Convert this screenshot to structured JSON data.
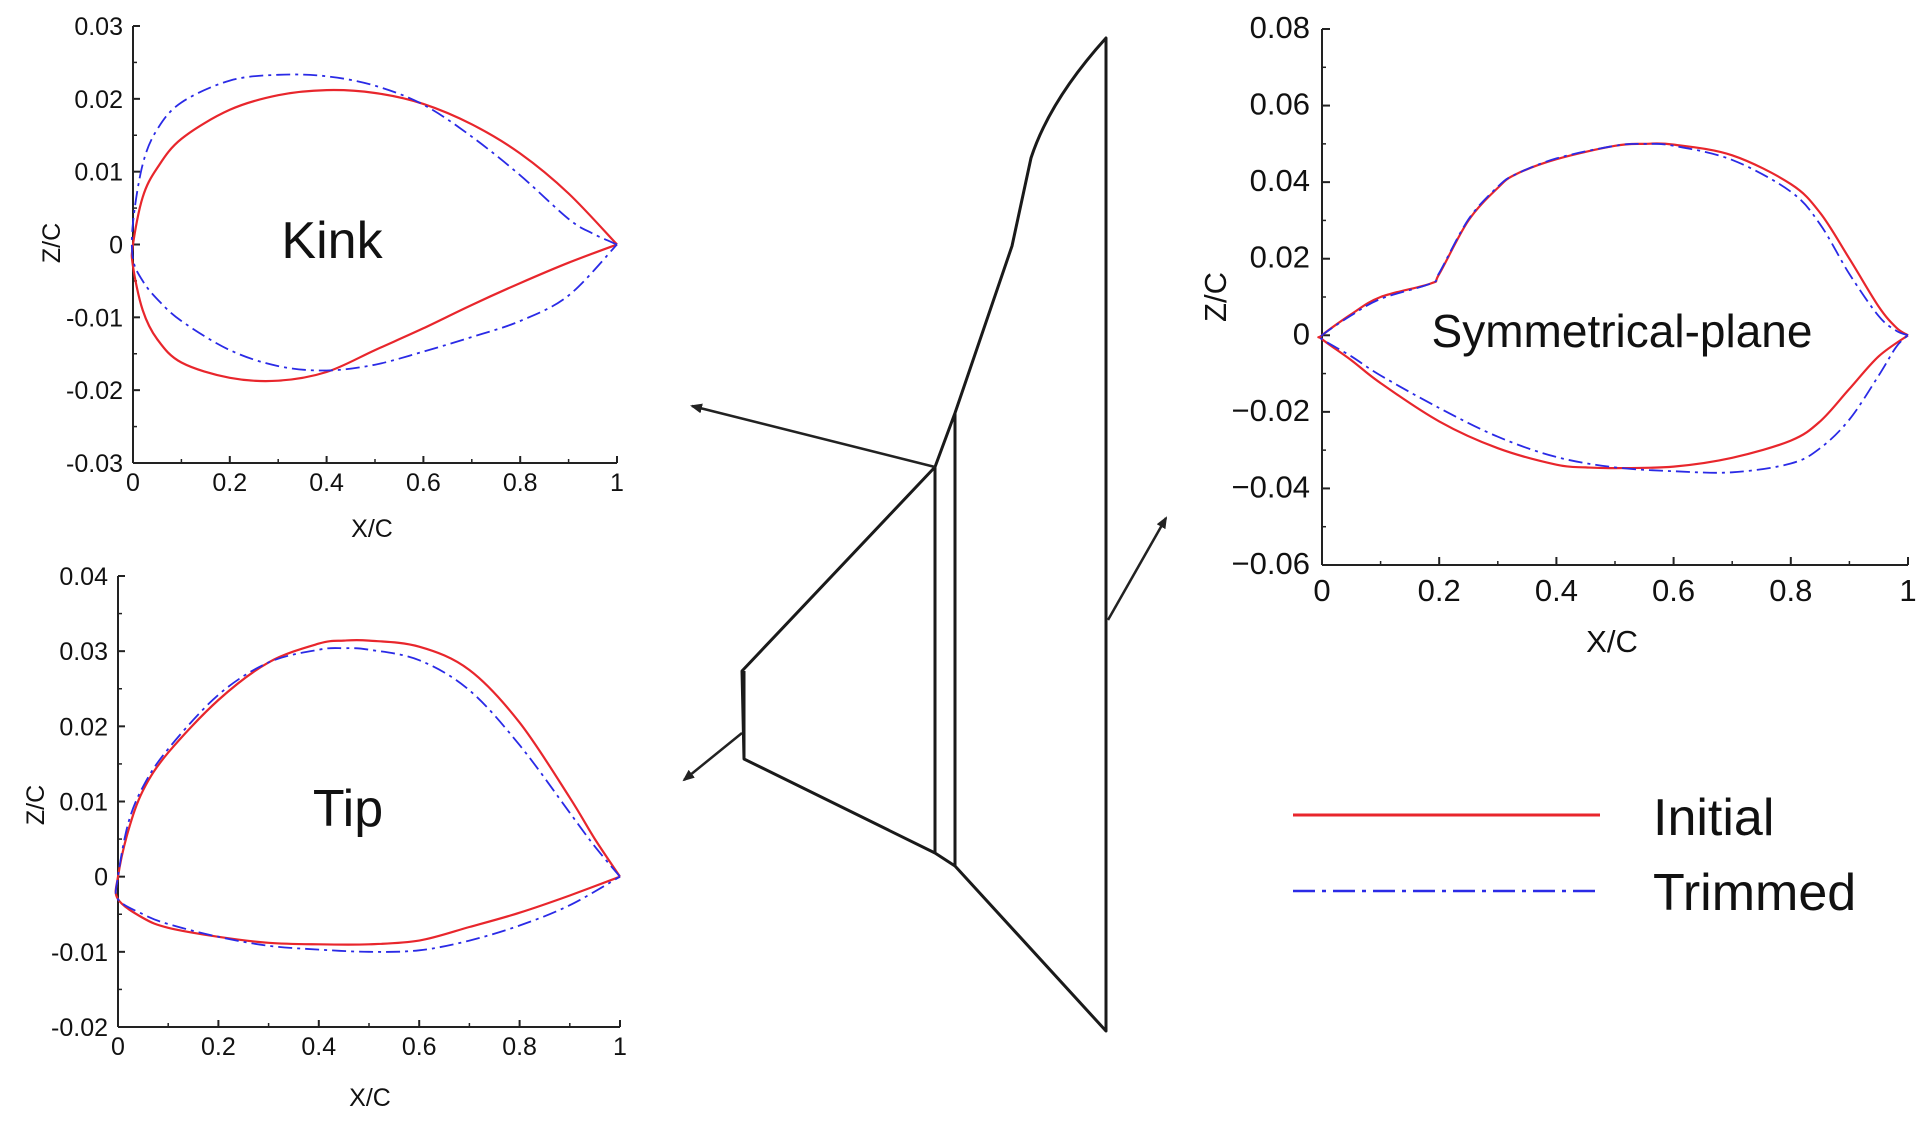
{
  "colors": {
    "initial": "#e8262c",
    "trimmed": "#2a2ae6",
    "axis": "#222222",
    "wing": "#1a1a1a"
  },
  "legend": {
    "initial_label": "Initial",
    "trimmed_label": "Trimmed"
  },
  "chart_data": [
    {
      "type": "line",
      "id": "kink",
      "annotation": "Kink",
      "xlabel": "X/C",
      "ylabel": "Z/C",
      "xlim": [
        0,
        1
      ],
      "ylim": [
        -0.03,
        0.03
      ],
      "xticks": [
        "0",
        "0.2",
        "0.4",
        "0.6",
        "0.8",
        "1"
      ],
      "yticks": [
        "0.03",
        "0.02",
        "0.01",
        "0",
        "-0.01",
        "-0.02",
        "-0.03"
      ],
      "yticks_values": [
        0.03,
        0.02,
        0.01,
        0,
        -0.01,
        -0.02,
        -0.03
      ],
      "series": [
        {
          "name": "Initial",
          "x": [
            1.0,
            0.9,
            0.8,
            0.7,
            0.6,
            0.5,
            0.4,
            0.3,
            0.2,
            0.1,
            0.05,
            0.02,
            0.0,
            0.0,
            0.02,
            0.05,
            0.1,
            0.2,
            0.3,
            0.4,
            0.5,
            0.6,
            0.7,
            0.8,
            0.9,
            1.0
          ],
          "y": [
            0.0,
            0.007,
            0.0125,
            0.0165,
            0.0193,
            0.0208,
            0.0212,
            0.0205,
            0.0185,
            0.0145,
            0.0105,
            0.0065,
            0.0,
            -0.003,
            -0.009,
            -0.013,
            -0.0162,
            -0.0183,
            -0.0187,
            -0.0175,
            -0.0145,
            -0.0115,
            -0.0083,
            -0.0053,
            -0.0025,
            0.0
          ]
        },
        {
          "name": "Trimmed",
          "x": [
            1.0,
            0.95,
            0.9,
            0.8,
            0.7,
            0.6,
            0.5,
            0.4,
            0.3,
            0.2,
            0.1,
            0.05,
            0.02,
            0.0,
            0.0,
            0.02,
            0.05,
            0.1,
            0.2,
            0.3,
            0.4,
            0.5,
            0.6,
            0.7,
            0.8,
            0.9,
            1.0
          ],
          "y": [
            0.0,
            0.0015,
            0.0035,
            0.0095,
            0.0148,
            0.0192,
            0.0218,
            0.0231,
            0.0233,
            0.0225,
            0.0195,
            0.0158,
            0.011,
            0.003,
            -0.002,
            -0.005,
            -0.0075,
            -0.0105,
            -0.0145,
            -0.0167,
            -0.0173,
            -0.0165,
            -0.0147,
            -0.0127,
            -0.0105,
            -0.007,
            0.0
          ]
        }
      ]
    },
    {
      "type": "line",
      "id": "tip",
      "annotation": "Tip",
      "xlabel": "X/C",
      "ylabel": "Z/C",
      "xlim": [
        0,
        1
      ],
      "ylim": [
        -0.02,
        0.04
      ],
      "xticks": [
        "0",
        "0.2",
        "0.4",
        "0.6",
        "0.8",
        "1"
      ],
      "yticks": [
        "0.04",
        "0.03",
        "0.02",
        "0.01",
        "0",
        "-0.01",
        "-0.02"
      ],
      "yticks_values": [
        0.04,
        0.03,
        0.02,
        0.01,
        0,
        -0.01,
        -0.02
      ],
      "series": [
        {
          "name": "Initial",
          "x": [
            1.0,
            0.95,
            0.9,
            0.8,
            0.7,
            0.6,
            0.5,
            0.45,
            0.4,
            0.3,
            0.2,
            0.1,
            0.05,
            0.02,
            0.0,
            0.0,
            0.05,
            0.1,
            0.2,
            0.3,
            0.4,
            0.5,
            0.6,
            0.7,
            0.8,
            0.9,
            1.0
          ],
          "y": [
            0.0,
            0.005,
            0.0105,
            0.0205,
            0.0275,
            0.0306,
            0.0314,
            0.0314,
            0.031,
            0.0285,
            0.0235,
            0.0165,
            0.0115,
            0.006,
            0.0,
            -0.003,
            -0.0055,
            -0.0068,
            -0.008,
            -0.0088,
            -0.009,
            -0.009,
            -0.0085,
            -0.0067,
            -0.0048,
            -0.0025,
            0.0
          ]
        },
        {
          "name": "Trimmed",
          "x": [
            1.0,
            0.95,
            0.9,
            0.8,
            0.7,
            0.6,
            0.5,
            0.45,
            0.4,
            0.3,
            0.2,
            0.1,
            0.05,
            0.02,
            0.0,
            0.0,
            0.05,
            0.1,
            0.2,
            0.3,
            0.4,
            0.5,
            0.6,
            0.7,
            0.8,
            0.9,
            1.0
          ],
          "y": [
            0.0,
            0.004,
            0.0085,
            0.0175,
            0.0248,
            0.0288,
            0.0302,
            0.0304,
            0.0302,
            0.0285,
            0.0242,
            0.017,
            0.012,
            0.007,
            0.0,
            -0.003,
            -0.005,
            -0.0063,
            -0.008,
            -0.0092,
            -0.0097,
            -0.01,
            -0.0098,
            -0.0085,
            -0.0065,
            -0.0038,
            0.0
          ]
        }
      ]
    },
    {
      "type": "line",
      "id": "symmetrical-plane",
      "annotation": "Symmetrical-plane",
      "xlabel": "X/C",
      "ylabel": "Z/C",
      "xlim": [
        0,
        1
      ],
      "ylim": [
        -0.06,
        0.08
      ],
      "xticks": [
        "0",
        "0.2",
        "0.4",
        "0.6",
        "0.8",
        "1"
      ],
      "yticks": [
        "0.08",
        "0.06",
        "0.04",
        "0.02",
        "0",
        "−0.02",
        "−0.04",
        "−0.06"
      ],
      "yticks_values": [
        0.08,
        0.06,
        0.04,
        0.02,
        0,
        -0.02,
        -0.04,
        -0.06
      ],
      "series": [
        {
          "name": "Initial",
          "x": [
            1.0,
            0.98,
            0.95,
            0.9,
            0.85,
            0.8,
            0.7,
            0.6,
            0.55,
            0.5,
            0.4,
            0.33,
            0.3,
            0.25,
            0.2,
            0.185,
            0.1,
            0.05,
            0.0,
            0.0,
            0.05,
            0.1,
            0.2,
            0.3,
            0.4,
            0.45,
            0.5,
            0.6,
            0.7,
            0.8,
            0.85,
            0.9,
            0.95,
            1.0
          ],
          "y": [
            0.0,
            0.002,
            0.0075,
            0.02,
            0.032,
            0.0395,
            0.047,
            0.0498,
            0.05,
            0.0495,
            0.046,
            0.042,
            0.0385,
            0.03,
            0.016,
            0.0135,
            0.01,
            0.0055,
            0.0,
            -0.001,
            -0.0065,
            -0.0125,
            -0.0225,
            -0.0295,
            -0.0338,
            -0.0345,
            -0.0347,
            -0.0343,
            -0.032,
            -0.0275,
            -0.0225,
            -0.014,
            -0.0055,
            0.0
          ]
        },
        {
          "name": "Trimmed",
          "x": [
            1.0,
            0.98,
            0.95,
            0.9,
            0.85,
            0.8,
            0.7,
            0.6,
            0.55,
            0.5,
            0.4,
            0.33,
            0.3,
            0.25,
            0.2,
            0.185,
            0.1,
            0.05,
            0.0,
            0.0,
            0.05,
            0.1,
            0.2,
            0.3,
            0.4,
            0.5,
            0.6,
            0.7,
            0.8,
            0.85,
            0.9,
            0.95,
            0.98,
            1.0
          ],
          "y": [
            0.0,
            0.0012,
            0.005,
            0.016,
            0.029,
            0.0375,
            0.0458,
            0.0495,
            0.05,
            0.0495,
            0.0462,
            0.042,
            0.0388,
            0.0303,
            0.0163,
            0.0135,
            0.0095,
            0.0052,
            0.0,
            -0.001,
            -0.0055,
            -0.0105,
            -0.019,
            -0.0265,
            -0.0318,
            -0.0345,
            -0.0355,
            -0.0358,
            -0.0335,
            -0.0295,
            -0.022,
            -0.0105,
            -0.003,
            0.0
          ]
        }
      ]
    }
  ]
}
